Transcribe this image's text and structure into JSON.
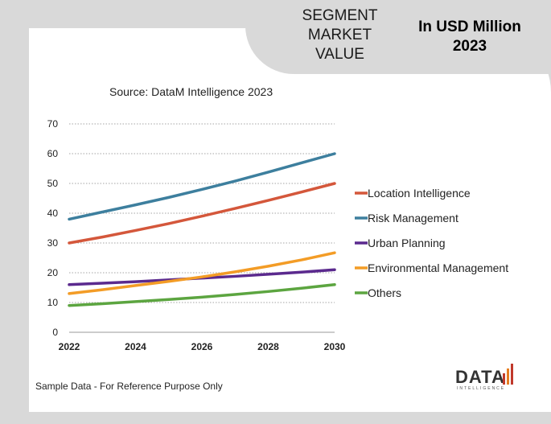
{
  "header": {
    "segment": "SEGMENT\nMARKET\nVALUE",
    "unit": "In USD Million\n2023"
  },
  "footer": "Sample Data - For Reference Purpose Only",
  "logo": {
    "main": "DATA",
    "sub": "INTELLIGENCE"
  },
  "chart_data": {
    "type": "line",
    "title": "Source: DataM Intelligence  2023",
    "xlabel": "",
    "ylabel": "",
    "x": [
      2022,
      2023,
      2024,
      2025,
      2026,
      2027,
      2028,
      2029,
      2030
    ],
    "x_ticks": [
      "2022",
      "2024",
      "2026",
      "2028",
      "2030"
    ],
    "y_ticks": [
      "0",
      "10",
      "20",
      "30",
      "40",
      "50",
      "60",
      "70"
    ],
    "xlim": [
      2022,
      2030
    ],
    "ylim": [
      0,
      70
    ],
    "grid": "horizontal dotted",
    "legend_position": "right",
    "series": [
      {
        "name": "Location Intelligence",
        "color": "#d4573b",
        "values": [
          30,
          32,
          34.2,
          36.5,
          39,
          41.6,
          44.3,
          47.1,
          50
        ]
      },
      {
        "name": "Risk Management",
        "color": "#3d7f9e",
        "values": [
          38,
          40.4,
          42.8,
          45.3,
          48,
          50.8,
          53.8,
          56.9,
          60
        ]
      },
      {
        "name": "Urban Planning",
        "color": "#5b2a8e",
        "values": [
          16,
          16.5,
          17,
          17.6,
          18.2,
          18.8,
          19.5,
          20.2,
          21
        ]
      },
      {
        "name": "Environmental Management",
        "color": "#f39c26",
        "values": [
          13,
          14.3,
          15.7,
          17.1,
          18.6,
          20.3,
          22.2,
          24.3,
          26.7
        ]
      },
      {
        "name": "Others",
        "color": "#5ca540",
        "values": [
          9,
          9.6,
          10.3,
          11,
          11.8,
          12.7,
          13.7,
          14.8,
          16
        ]
      }
    ]
  }
}
